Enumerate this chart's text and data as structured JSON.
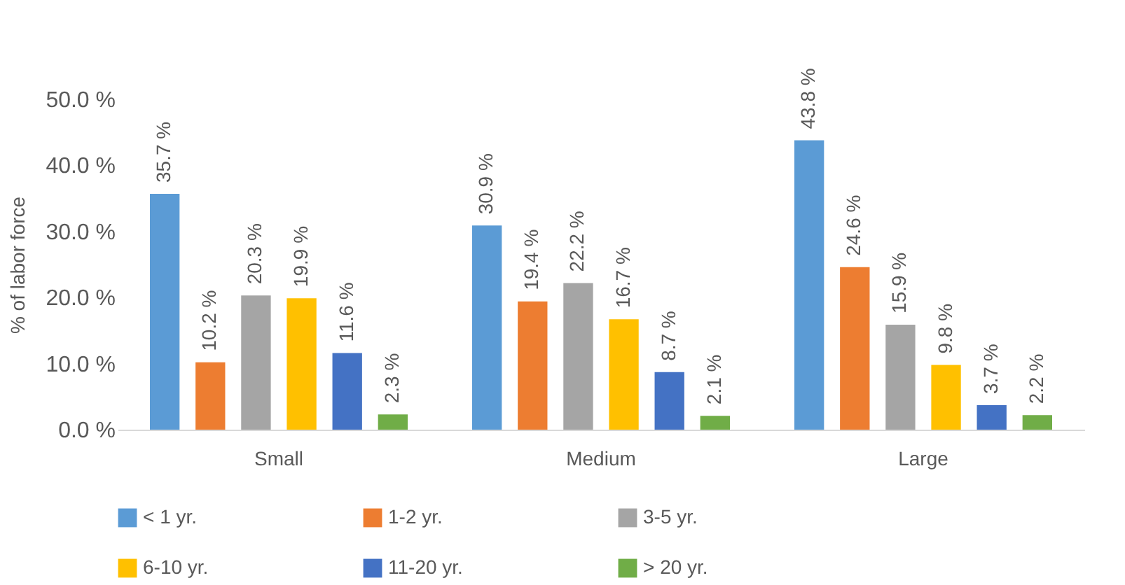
{
  "chart_data": {
    "type": "bar",
    "ylabel": "% of labor force",
    "categories": [
      "Small",
      "Medium",
      "Large"
    ],
    "series": [
      {
        "name": "< 1 yr.",
        "color": "#5b9bd5",
        "values": [
          35.7,
          30.9,
          43.8
        ],
        "value_labels": [
          "35.7 %",
          "30.9 %",
          "43.8 %"
        ]
      },
      {
        "name": "1-2 yr.",
        "color": "#ed7d31",
        "values": [
          10.2,
          19.4,
          24.6
        ],
        "value_labels": [
          "10.2 %",
          "19.4 %",
          "24.6 %"
        ]
      },
      {
        "name": "3-5 yr.",
        "color": "#a5a5a5",
        "values": [
          20.3,
          22.2,
          15.9
        ],
        "value_labels": [
          "20.3 %",
          "22.2 %",
          "15.9 %"
        ]
      },
      {
        "name": "6-10 yr.",
        "color": "#ffc000",
        "values": [
          19.9,
          16.7,
          9.8
        ],
        "value_labels": [
          "19.9 %",
          "16.7 %",
          "9.8 %"
        ]
      },
      {
        "name": "11-20 yr.",
        "color": "#4472c4",
        "values": [
          11.6,
          8.7,
          3.7
        ],
        "value_labels": [
          "11.6 %",
          "8.7 %",
          "3.7 %"
        ]
      },
      {
        "name": "> 20 yr.",
        "color": "#70ad47",
        "values": [
          2.3,
          2.1,
          2.2
        ],
        "value_labels": [
          "2.3 %",
          "2.1 %",
          "2.2 %"
        ]
      }
    ],
    "ylim": [
      0,
      50
    ],
    "yticks": [
      {
        "value": 0,
        "label": "0.0 %"
      },
      {
        "value": 10,
        "label": "10.0 %"
      },
      {
        "value": 20,
        "label": "20.0 %"
      },
      {
        "value": 30,
        "label": "30.0 %"
      },
      {
        "value": 40,
        "label": "40.0 %"
      },
      {
        "value": 50,
        "label": "50.0 %"
      }
    ],
    "grid": false,
    "legend": "bottom"
  }
}
